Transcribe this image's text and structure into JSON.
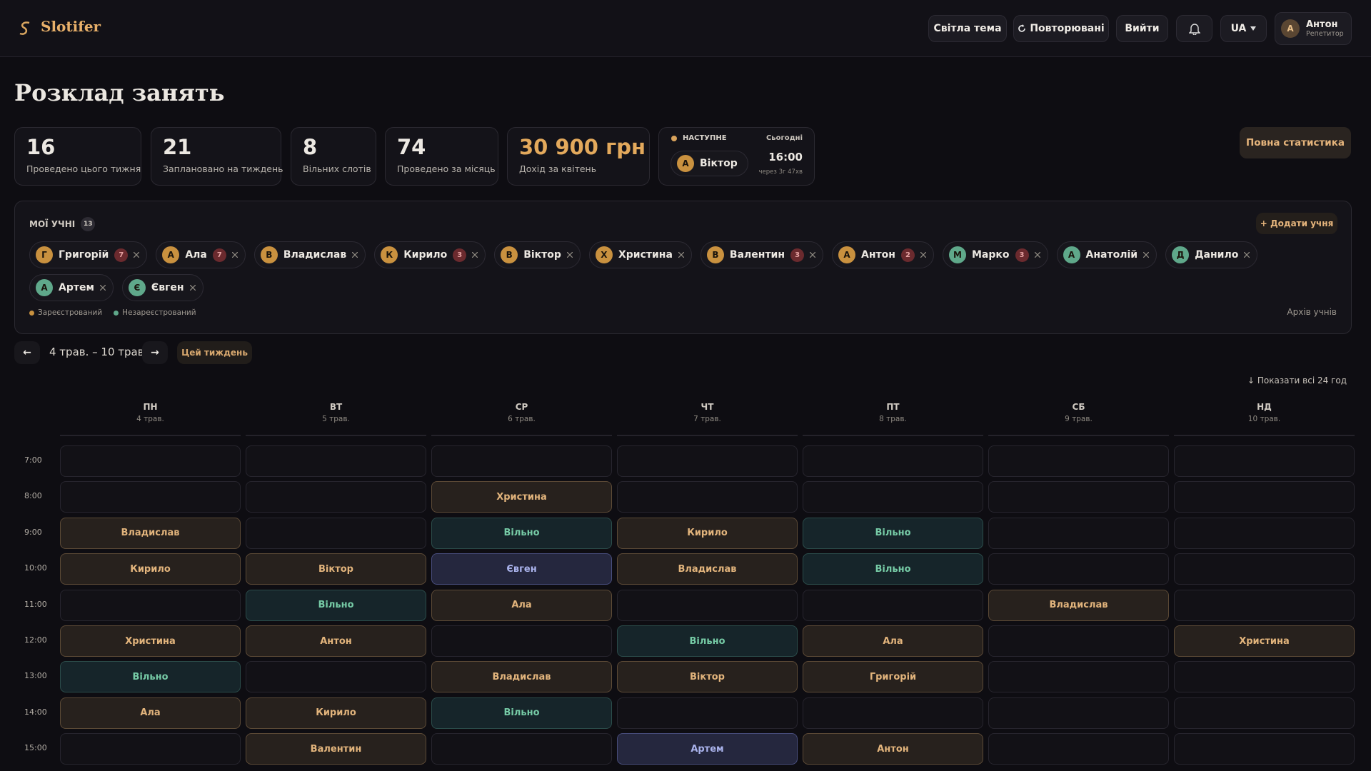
{
  "header": {
    "logo": "Slotifer",
    "buttons": [
      "Світла тема",
      "Повторювані",
      "Вийти"
    ],
    "lang": "UA",
    "user": {
      "initial": "А",
      "name": "Антон",
      "role": "Репетитор"
    }
  },
  "page_title": "Розклад занять",
  "stats": [
    {
      "value": 16,
      "label": "Проведено цього тижня"
    },
    {
      "value": 21,
      "label": "Заплановано на тиждень"
    },
    {
      "value": 8,
      "label": "Вільних слотів"
    },
    {
      "value": 74,
      "label": "Проведено за місяць"
    },
    {
      "value": "30 900 грн",
      "label": "Дохід за квітень"
    }
  ],
  "next": {
    "label": "НАСТУПНЕ",
    "day": "Сьогодні",
    "initial": "А",
    "name": "Віктор",
    "time": "16:00",
    "in": "через 3г 47хв"
  },
  "full_stats": "Повна статистика",
  "students_panel": {
    "title": "МОЇ УЧНІ",
    "count": 13,
    "add": "+ Додати учня",
    "archive": "Архів учнів",
    "legend": [
      {
        "label": "Зареєстрований",
        "color": "#c9913f"
      },
      {
        "label": "Незареєстрований",
        "color": "#5fa88a"
      }
    ],
    "students": [
      {
        "initial": "Г",
        "name": "Григорій",
        "count": 7,
        "registered": true
      },
      {
        "initial": "А",
        "name": "Ала",
        "count": 7,
        "registered": true
      },
      {
        "initial": "В",
        "name": "Владислав",
        "count": null,
        "registered": true
      },
      {
        "initial": "К",
        "name": "Кирило",
        "count": 3,
        "registered": true
      },
      {
        "initial": "В",
        "name": "Віктор",
        "count": null,
        "registered": true
      },
      {
        "initial": "Х",
        "name": "Христина",
        "count": null,
        "registered": true
      },
      {
        "initial": "В",
        "name": "Валентин",
        "count": 3,
        "registered": true
      },
      {
        "initial": "А",
        "name": "Антон",
        "count": 2,
        "registered": true
      },
      {
        "initial": "М",
        "name": "Марко",
        "count": 3,
        "registered": false
      },
      {
        "initial": "А",
        "name": "Анатолій",
        "count": null,
        "registered": false
      },
      {
        "initial": "Д",
        "name": "Данило",
        "count": null,
        "registered": false
      },
      {
        "initial": "А",
        "name": "Артем",
        "count": null,
        "registered": false
      },
      {
        "initial": "Є",
        "name": "Євген",
        "count": null,
        "registered": false
      }
    ]
  },
  "week": {
    "prev": "←",
    "range": "4 трав. – 10 трав.",
    "next": "→",
    "today": "Цей тиждень",
    "show_all": "↓ Показати всі 24 год"
  },
  "days": [
    {
      "name": "ПН",
      "date": "4 трав."
    },
    {
      "name": "ВТ",
      "date": "5 трав."
    },
    {
      "name": "СР",
      "date": "6 трав."
    },
    {
      "name": "ЧТ",
      "date": "7 трав."
    },
    {
      "name": "ПТ",
      "date": "8 трав."
    },
    {
      "name": "СБ",
      "date": "9 трав."
    },
    {
      "name": "НД",
      "date": "10 трав."
    }
  ],
  "free_label": "Вільно",
  "hours": [
    "7:00",
    "8:00",
    "9:00",
    "10:00",
    "11:00",
    "12:00",
    "13:00",
    "14:00",
    "15:00"
  ],
  "schedule": [
    [
      null,
      null,
      null,
      null,
      null,
      null,
      null
    ],
    [
      null,
      null,
      "Христина",
      null,
      null,
      null,
      null
    ],
    [
      "Владислав",
      null,
      "Вільно",
      "Кирило",
      "Вільно",
      null,
      null
    ],
    [
      "Кирило",
      "Віктор",
      "Євген",
      "Владислав",
      "Вільно",
      null,
      null
    ],
    [
      null,
      "Вільно",
      "Ала",
      null,
      null,
      "Владислав",
      null
    ],
    [
      "Христина",
      "Антон",
      null,
      "Вільно",
      "Ала",
      null,
      "Христина"
    ],
    [
      "Вільно",
      null,
      "Владислав",
      "Віктор",
      "Григорій",
      null,
      null
    ],
    [
      "Ала",
      "Кирило",
      "Вільно",
      null,
      null,
      null,
      null
    ],
    [
      null,
      "Валентин",
      null,
      "Артем",
      "Антон",
      null,
      null
    ]
  ]
}
